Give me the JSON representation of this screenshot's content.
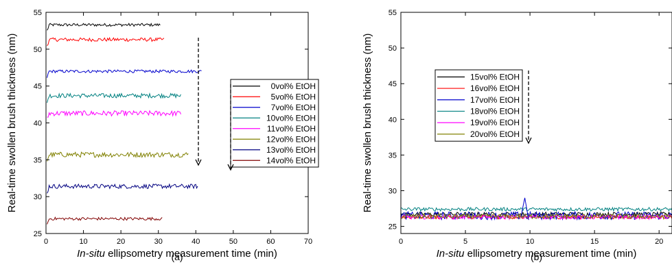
{
  "chart_data": [
    {
      "type": "line",
      "panel_label": "(a)",
      "ylabel": "Real-time swollen brush thickness (nm)",
      "xlabel_italic": "In-situ",
      "xlabel_rest": " ellipsometry measurement  time (min)",
      "xlim": [
        0,
        70
      ],
      "ylim": [
        25,
        55
      ],
      "xticks": [
        "0",
        "10",
        "20",
        "30",
        "40",
        "50",
        "60",
        "70"
      ],
      "yticks": [
        "25",
        "30",
        "35",
        "40",
        "45",
        "50",
        "55"
      ],
      "legend_position": "right",
      "series": [
        {
          "name": "0vol% EtOH",
          "color": "#000000",
          "x_start": 0.3,
          "x_end": 30.5,
          "level": 53.3,
          "noise": 0.2
        },
        {
          "name": "5vol% EtOH",
          "color": "#ff0000",
          "x_start": 0.3,
          "x_end": 31.5,
          "level": 51.3,
          "noise": 0.25
        },
        {
          "name": "7vol% EtOH",
          "color": "#0000cc",
          "x_start": 0.3,
          "x_end": 41.5,
          "level": 47.0,
          "noise": 0.2
        },
        {
          "name": "10vol% EtOH",
          "color": "#008080",
          "x_start": 0.3,
          "x_end": 36.0,
          "level": 43.7,
          "noise": 0.3
        },
        {
          "name": "11vol% EtOH",
          "color": "#ff00ff",
          "x_start": 0.3,
          "x_end": 36.0,
          "level": 41.3,
          "noise": 0.35
        },
        {
          "name": "12vol% EtOH",
          "color": "#808000",
          "x_start": 0.3,
          "x_end": 38.0,
          "level": 35.7,
          "noise": 0.35
        },
        {
          "name": "13vol% EtOH",
          "color": "#000080",
          "x_start": 0.3,
          "x_end": 40.5,
          "level": 31.4,
          "noise": 0.3
        },
        {
          "name": "14vol% EtOH",
          "color": "#800000",
          "x_start": 0.3,
          "x_end": 31.0,
          "level": 27.0,
          "noise": 0.2
        }
      ],
      "annotation": "dashed downward arrow"
    },
    {
      "type": "line",
      "panel_label": "(b)",
      "ylabel": "Real-time swollen brush thickness (nm)",
      "xlabel_italic": "In-situ",
      "xlabel_rest": " ellipsometry measurement  time (min)",
      "xlim": [
        0,
        21
      ],
      "ylim": [
        24,
        55
      ],
      "xticks": [
        "0",
        "5",
        "10",
        "15",
        "20"
      ],
      "yticks": [
        "25",
        "30",
        "35",
        "40",
        "45",
        "50",
        "55"
      ],
      "legend_position": "upper-left",
      "series": [
        {
          "name": "15vol% EtOH",
          "color": "#000000",
          "x_start": 0,
          "x_end": 21,
          "level": 26.7,
          "noise": 0.3
        },
        {
          "name": "16vol% EtOH",
          "color": "#ff0000",
          "x_start": 0,
          "x_end": 21,
          "level": 26.3,
          "noise": 0.25
        },
        {
          "name": "17vol% EtOH",
          "color": "#0000cc",
          "x_start": 0,
          "x_end": 21,
          "level": 26.5,
          "noise": 0.55
        },
        {
          "name": "18vol% EtOH",
          "color": "#008080",
          "x_start": 0,
          "x_end": 21,
          "level": 27.4,
          "noise": 0.25
        },
        {
          "name": "19vol% EtOH",
          "color": "#ff00ff",
          "x_start": 0,
          "x_end": 21,
          "level": 26.3,
          "noise": 0.3
        },
        {
          "name": "20vol% EtOH",
          "color": "#808000",
          "x_start": 0,
          "x_end": 21,
          "level": 26.4,
          "noise": 0.35
        }
      ],
      "annotation": "dashed downward arrow"
    }
  ]
}
